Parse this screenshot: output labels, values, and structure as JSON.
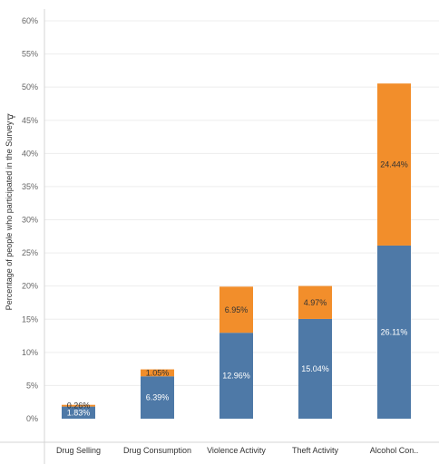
{
  "chart_data": {
    "type": "bar",
    "stacked": true,
    "categories": [
      "Drug Selling",
      "Drug Consumption",
      "Violence Activity",
      "Theft Activity",
      "Alcohol Con.."
    ],
    "series": [
      {
        "values": [
          1.83,
          6.39,
          12.96,
          15.04,
          26.11
        ],
        "labels": [
          "1.83%",
          "6.39%",
          "12.96%",
          "15.04%",
          "26.11%"
        ],
        "color": "#4e79a7",
        "label_color": "#ffffff"
      },
      {
        "values": [
          0.26,
          1.05,
          6.95,
          4.97,
          24.44
        ],
        "labels": [
          "0.26%",
          "1.05%",
          "6.95%",
          "4.97%",
          "24.44%"
        ],
        "color": "#f28e2b",
        "label_color": "#333333"
      }
    ],
    "ylabel": "Percentage of people who participated in the Survey",
    "ylim": [
      0,
      60
    ],
    "yticks": [
      0,
      5,
      10,
      15,
      20,
      25,
      30,
      35,
      40,
      45,
      50,
      55,
      60
    ],
    "ytick_labels": [
      "0%",
      "5%",
      "10%",
      "15%",
      "20%",
      "25%",
      "30%",
      "35%",
      "40%",
      "45%",
      "50%",
      "55%",
      "60%"
    ],
    "grid": true,
    "gridline_color": "#ededed",
    "axis_line_color": "#d4d4d4",
    "ylabel_icon": "pin-icon"
  }
}
